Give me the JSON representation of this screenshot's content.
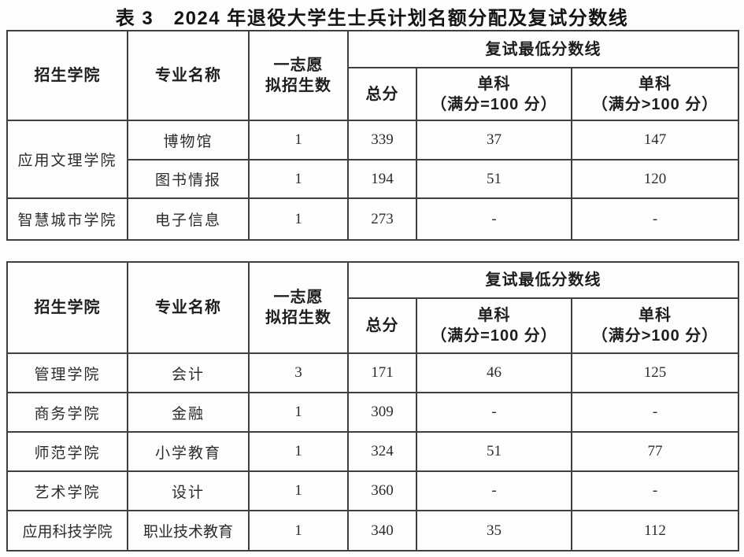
{
  "page": {
    "title": "表 3　2024 年退役大学生士兵计划名额分配及复试分数线",
    "background_color": "#fdfdfd",
    "border_color": "#3f3f3f",
    "text_color": "#2a2a2a"
  },
  "header": {
    "college": "招生学院",
    "major": "专业名称",
    "quota_line1": "一志愿",
    "quota_line2": "拟招生数",
    "retest_group": "复试最低分数线",
    "total": "总分",
    "single_eq_line1": "单科",
    "single_eq_line2": "（满分=100 分）",
    "single_gt_line1": "单科",
    "single_gt_line2": "（满分>100 分）"
  },
  "table1": {
    "rows": [
      {
        "college": "应用文理学院",
        "major": "博物馆",
        "quota": "1",
        "total": "339",
        "single_eq100": "37",
        "single_gt100": "147"
      },
      {
        "major": "图书情报",
        "quota": "1",
        "total": "194",
        "single_eq100": "51",
        "single_gt100": "120"
      },
      {
        "college": "智慧城市学院",
        "major": "电子信息",
        "quota": "1",
        "total": "273",
        "single_eq100": "-",
        "single_gt100": "-"
      }
    ]
  },
  "table2": {
    "rows": [
      {
        "college": "管理学院",
        "major": "会计",
        "quota": "3",
        "total": "171",
        "single_eq100": "46",
        "single_gt100": "125"
      },
      {
        "college": "商务学院",
        "major": "金融",
        "quota": "1",
        "total": "309",
        "single_eq100": "-",
        "single_gt100": "-"
      },
      {
        "college": "师范学院",
        "major": "小学教育",
        "quota": "1",
        "total": "324",
        "single_eq100": "51",
        "single_gt100": "77"
      },
      {
        "college": "艺术学院",
        "major": "设计",
        "quota": "1",
        "total": "360",
        "single_eq100": "-",
        "single_gt100": "-"
      },
      {
        "college": "应用科技学院",
        "major": "职业技术教育",
        "quota": "1",
        "total": "340",
        "single_eq100": "35",
        "single_gt100": "112"
      }
    ]
  }
}
